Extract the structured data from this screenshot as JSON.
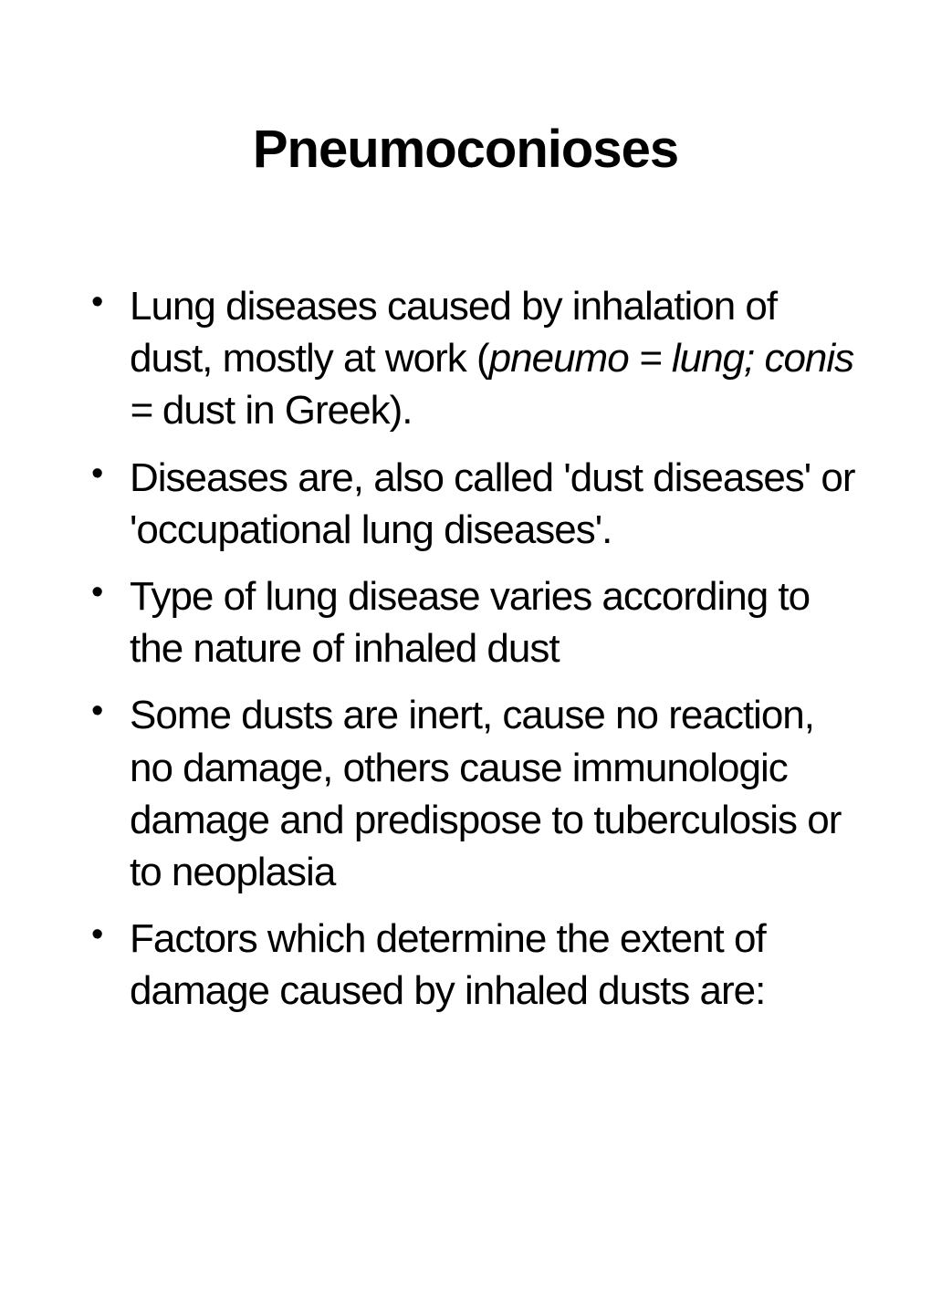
{
  "slide": {
    "title": "Pneumoconioses",
    "title_fontsize": 58,
    "title_fontweight": "bold",
    "body_fontsize": 44,
    "background_color": "#ffffff",
    "text_color": "#000000",
    "bullets": [
      {
        "segments": [
          {
            "text": "Lung diseases caused by inhalation of dust, mostly at work (",
            "italic": false
          },
          {
            "text": "pneumo = lung; conis = ",
            "italic": true
          },
          {
            "text": "dust in Greek).",
            "italic": false
          }
        ]
      },
      {
        "segments": [
          {
            "text": "Diseases are, also called 'dust diseases' or 'occupational lung diseases'.",
            "italic": false
          }
        ]
      },
      {
        "segments": [
          {
            "text": "Type of lung disease varies according to the nature of inhaled dust",
            "italic": false
          }
        ]
      },
      {
        "segments": [
          {
            "text": "Some dusts are inert, cause no reaction, no damage, others cause immunologic damage and predispose to tuberculosis or to neoplasia",
            "italic": false
          }
        ]
      },
      {
        "segments": [
          {
            "text": "Factors which determine the extent of damage caused by inhaled dusts are:",
            "italic": false
          }
        ]
      }
    ]
  }
}
